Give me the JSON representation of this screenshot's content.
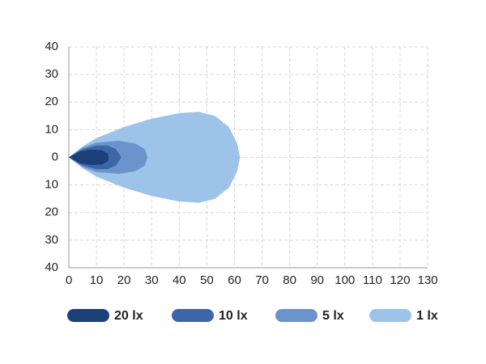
{
  "chart_data": {
    "type": "contour",
    "series": [
      {
        "name": "20 lx",
        "color": "#1b3f78",
        "x": [
          0,
          4,
          8,
          12,
          14,
          14.5,
          14,
          12,
          8,
          4
        ],
        "y": [
          0,
          2.2,
          2.8,
          2.6,
          1.5,
          0,
          -1.5,
          -2.6,
          -2.8,
          -2.2
        ]
      },
      {
        "name": "10 lx",
        "color": "#3d66a8",
        "x": [
          0,
          5,
          10,
          14,
          17,
          19,
          17,
          14,
          10,
          5
        ],
        "y": [
          0,
          3,
          4.3,
          4.3,
          3,
          0,
          -3,
          -4.3,
          -4.3,
          -3
        ]
      },
      {
        "name": "5 lx",
        "color": "#6a93cc",
        "x": [
          0,
          5,
          10,
          18,
          24,
          27.5,
          28.5,
          27.5,
          24,
          18,
          10,
          5
        ],
        "y": [
          0,
          3.5,
          5.3,
          6,
          5,
          3,
          0,
          -3,
          -5,
          -6,
          -5.3,
          -3.5
        ]
      },
      {
        "name": "1 lx",
        "color": "#9dc3e8",
        "x": [
          0,
          5,
          10,
          20,
          30,
          40,
          47,
          53,
          58,
          61,
          62,
          61,
          58,
          53,
          47,
          40,
          30,
          20,
          10,
          5
        ],
        "y": [
          0,
          4,
          7,
          11,
          14,
          16,
          16.5,
          15,
          11,
          5,
          0,
          -5,
          -11,
          -15,
          -16.5,
          -16,
          -14,
          -11,
          -7,
          -4
        ]
      }
    ],
    "xlim": [
      0,
      130
    ],
    "xticks": [
      0,
      10,
      20,
      30,
      40,
      50,
      60,
      70,
      80,
      90,
      100,
      110,
      120,
      130
    ],
    "ylim": [
      -40,
      40
    ],
    "yticks": [
      {
        "value": -40,
        "label": "40"
      },
      {
        "value": -30,
        "label": "30"
      },
      {
        "value": -20,
        "label": "20"
      },
      {
        "value": -10,
        "label": "10"
      },
      0,
      10,
      20,
      30,
      40
    ],
    "grid": true
  }
}
